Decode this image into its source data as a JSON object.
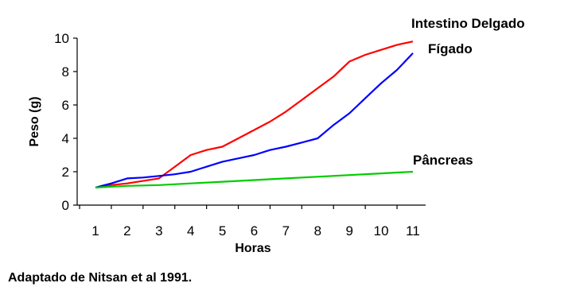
{
  "chart_data": {
    "type": "line",
    "xlabel": "Horas",
    "ylabel": "Peso (g)",
    "xlim": [
      1,
      11
    ],
    "ylim": [
      0,
      10
    ],
    "x_ticks": [
      1,
      2,
      3,
      4,
      5,
      6,
      7,
      8,
      9,
      10,
      11
    ],
    "y_ticks": [
      0,
      2,
      4,
      6,
      8,
      10
    ],
    "grid": false,
    "source_note": "Adaptado de Nitsan et al 1991.",
    "series": [
      {
        "name": "Intestino Delgado",
        "color": "#ff0000",
        "x": [
          1,
          1.5,
          2,
          2.5,
          3,
          3.5,
          4,
          4.5,
          5,
          5.5,
          6,
          6.5,
          7,
          7.5,
          8,
          8.5,
          9,
          9.5,
          10,
          10.5,
          11
        ],
        "y": [
          1.05,
          1.2,
          1.3,
          1.45,
          1.6,
          2.3,
          3.0,
          3.3,
          3.5,
          4.0,
          4.5,
          5.0,
          5.6,
          6.3,
          7.0,
          7.7,
          8.6,
          9.0,
          9.3,
          9.6,
          9.8
        ]
      },
      {
        "name": "Fígado",
        "color": "#0000ff",
        "x": [
          1,
          1.5,
          2,
          2.5,
          3,
          3.5,
          4,
          4.5,
          5,
          5.5,
          6,
          6.5,
          7,
          7.5,
          8,
          8.5,
          9,
          9.5,
          10,
          10.5,
          11
        ],
        "y": [
          1.05,
          1.3,
          1.6,
          1.65,
          1.75,
          1.85,
          2.0,
          2.3,
          2.6,
          2.8,
          3.0,
          3.3,
          3.5,
          3.75,
          4.0,
          4.8,
          5.5,
          6.4,
          7.3,
          8.1,
          9.1
        ]
      },
      {
        "name": "Pâncreas",
        "color": "#00cc00",
        "x": [
          1,
          2,
          3,
          4,
          5,
          6,
          7,
          8,
          9,
          10,
          11
        ],
        "y": [
          1.05,
          1.15,
          1.2,
          1.3,
          1.4,
          1.5,
          1.6,
          1.7,
          1.8,
          1.9,
          2.0
        ]
      }
    ]
  }
}
